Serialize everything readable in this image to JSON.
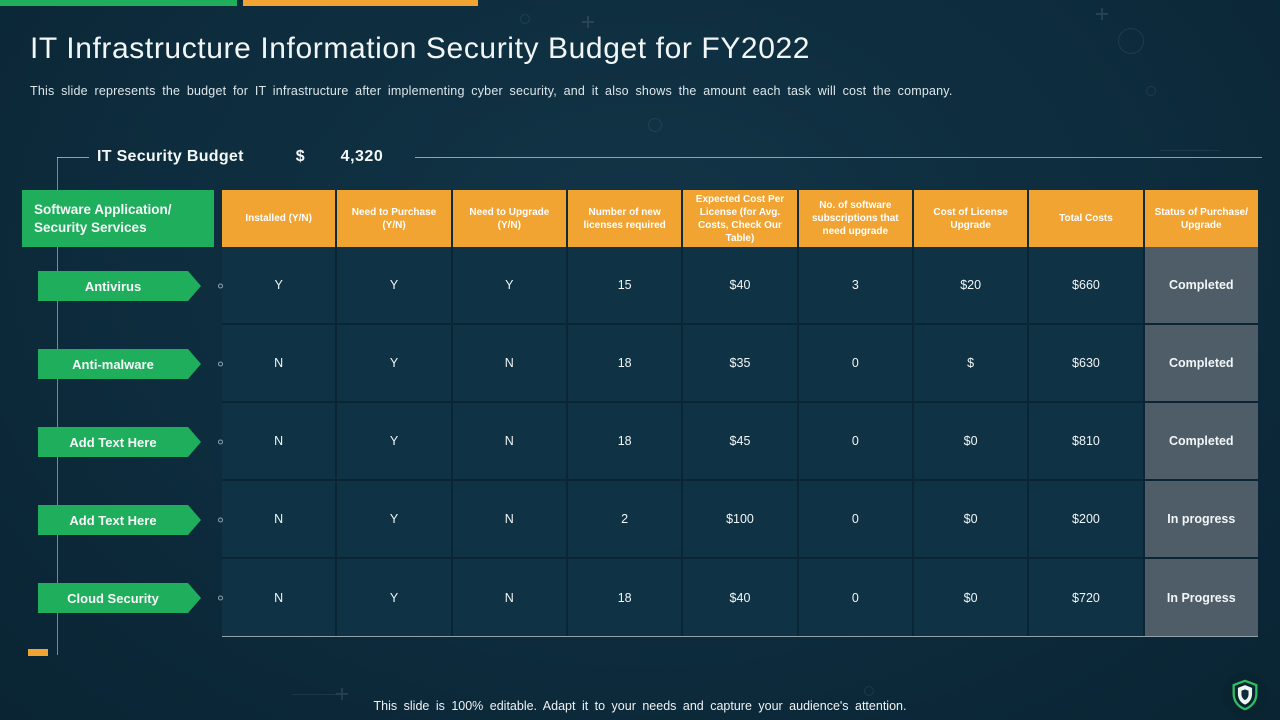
{
  "slide": {
    "title": "IT Infrastructure Information Security Budget for FY2022",
    "subtitle": "This slide represents the budget for IT infrastructure after implementing cyber security, and it also shows the amount each task will cost the company.",
    "footer": "This slide is 100% editable. Adapt it to your needs and capture your audience's attention."
  },
  "budget": {
    "label": "IT Security Budget",
    "currency": "$",
    "amount": "4,320"
  },
  "table": {
    "corner_header": "Software Application/ Security Services",
    "columns": [
      "Installed (Y/N)",
      "Need to Purchase (Y/N)",
      "Need to Upgrade (Y/N)",
      "Number of new licenses required",
      "Expected Cost Per License (for Avg. Costs, Check Our Table)",
      "No. of software subscriptions that need upgrade",
      "Cost of License Upgrade",
      "Total Costs",
      "Status of Purchase/ Upgrade"
    ],
    "rows": [
      {
        "label": "Antivirus",
        "values": [
          "Y",
          "Y",
          "Y",
          "15",
          "$40",
          "3",
          "$20",
          "$660"
        ],
        "status": "Completed"
      },
      {
        "label": "Anti-malware",
        "values": [
          "N",
          "Y",
          "N",
          "18",
          "$35",
          "0",
          "$",
          "$630"
        ],
        "status": "Completed"
      },
      {
        "label": "Add Text Here",
        "values": [
          "N",
          "Y",
          "N",
          "18",
          "$45",
          "0",
          "$0",
          "$810"
        ],
        "status": "Completed"
      },
      {
        "label": "Add Text Here",
        "values": [
          "N",
          "Y",
          "N",
          "2",
          "$100",
          "0",
          "$0",
          "$200"
        ],
        "status": "In progress"
      },
      {
        "label": "Cloud Security",
        "values": [
          "N",
          "Y",
          "N",
          "18",
          "$40",
          "0",
          "$0",
          "$720"
        ],
        "status": "In Progress"
      }
    ]
  },
  "colors": {
    "background": "#0d2c3d",
    "green": "#1fae5c",
    "orange": "#f2a433",
    "status_cell": "#4e5d68"
  },
  "icons": {
    "logo": "shield-logo"
  }
}
